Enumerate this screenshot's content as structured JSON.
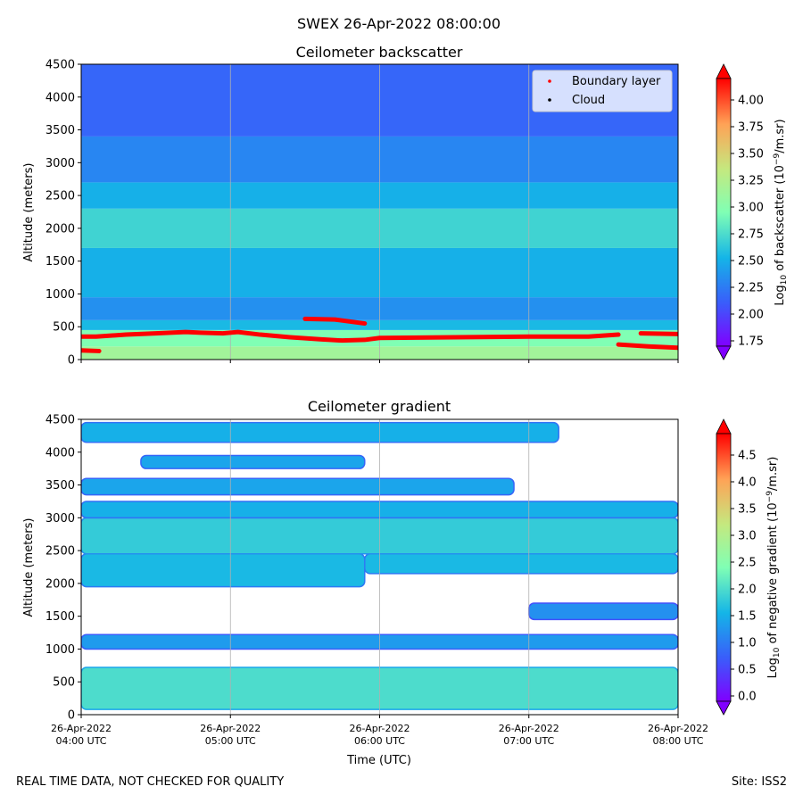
{
  "figure_title": "SWEX 26-Apr-2022 08:00:00",
  "footer_left": "REAL TIME DATA, NOT CHECKED FOR QUALITY",
  "footer_right": "Site: ISS2",
  "chart_data": [
    {
      "type": "heatmap",
      "title": "Ceilometer backscatter",
      "ylabel": "Altitude (meters)",
      "xlabel": "",
      "xlim": [
        0,
        4
      ],
      "ylim": [
        0,
        4500
      ],
      "yticks": [
        "0",
        "500",
        "1000",
        "1500",
        "2000",
        "2500",
        "3000",
        "3500",
        "4000",
        "4500"
      ],
      "grid": "vertical",
      "colorbar": {
        "label": "Log10 of backscatter (10^-9/m.sr)",
        "ticks": [
          "1.75",
          "2.00",
          "2.25",
          "2.50",
          "2.75",
          "3.00",
          "3.25",
          "3.50",
          "3.75",
          "4.00"
        ],
        "range": [
          1.7,
          4.2
        ],
        "colormap": "rainbow"
      },
      "legend": {
        "position": "top-right",
        "entries": [
          {
            "label": "Boundary layer",
            "color": "#ff0000"
          },
          {
            "label": "Cloud",
            "color": "#000000"
          }
        ]
      },
      "field_layers": [
        {
          "alt_min": 0,
          "alt_max": 200,
          "value": 3.15
        },
        {
          "alt_min": 200,
          "alt_max": 450,
          "value": 2.95
        },
        {
          "alt_min": 450,
          "alt_max": 600,
          "value": 2.55
        },
        {
          "alt_min": 600,
          "alt_max": 950,
          "value": 2.35
        },
        {
          "alt_min": 950,
          "alt_max": 1700,
          "value": 2.5
        },
        {
          "alt_min": 1700,
          "alt_max": 2300,
          "value": 2.7
        },
        {
          "alt_min": 2300,
          "alt_max": 2700,
          "value": 2.5
        },
        {
          "alt_min": 2700,
          "alt_max": 3400,
          "value": 2.3
        },
        {
          "alt_min": 3400,
          "alt_max": 4500,
          "value": 2.15
        }
      ],
      "series": [
        {
          "name": "Boundary layer",
          "color": "#ff0000",
          "segments": [
            {
              "x": [
                0.0,
                0.12
              ],
              "y": [
                140,
                130
              ]
            },
            {
              "x": [
                0.0,
                0.1,
                0.3,
                0.5,
                0.7,
                0.8,
                0.95,
                1.05,
                1.2,
                1.4,
                1.6,
                1.75,
                1.9,
                2.0,
                2.5,
                3.0,
                3.4,
                3.6
              ],
              "y": [
                350,
                350,
                380,
                400,
                420,
                410,
                400,
                420,
                380,
                340,
                310,
                290,
                300,
                330,
                340,
                350,
                350,
                380
              ]
            },
            {
              "x": [
                1.5,
                1.7,
                1.9
              ],
              "y": [
                620,
                610,
                550
              ]
            },
            {
              "x": [
                3.6,
                3.8,
                4.0
              ],
              "y": [
                230,
                200,
                180
              ]
            },
            {
              "x": [
                3.75,
                4.0
              ],
              "y": [
                400,
                390
              ]
            }
          ]
        },
        {
          "name": "Cloud",
          "color": "#000000",
          "segments": []
        }
      ]
    },
    {
      "type": "heatmap",
      "title": "Ceilometer gradient",
      "ylabel": "Altitude (meters)",
      "xlabel": "Time (UTC)",
      "xlim": [
        0,
        4
      ],
      "ylim": [
        0,
        4500
      ],
      "xticks": [
        "26-Apr-2022\n04:00 UTC",
        "26-Apr-2022\n05:00 UTC",
        "26-Apr-2022\n06:00 UTC",
        "26-Apr-2022\n07:00 UTC",
        "26-Apr-2022\n08:00 UTC"
      ],
      "yticks": [
        "0",
        "500",
        "1000",
        "1500",
        "2000",
        "2500",
        "3000",
        "3500",
        "4000",
        "4500"
      ],
      "grid": "vertical",
      "colorbar": {
        "label": "Log10 of negative gradient (10^-9/m.sr)",
        "ticks": [
          "0.0",
          "0.5",
          "1.0",
          "1.5",
          "2.0",
          "2.5",
          "3.0",
          "3.5",
          "4.0",
          "4.5"
        ],
        "range": [
          -0.1,
          4.9
        ],
        "colormap": "rainbow"
      },
      "bands": [
        {
          "x_min": 0.0,
          "x_max": 4.0,
          "alt_min": 80,
          "alt_max": 720,
          "value": 2.0
        },
        {
          "x_min": 0.0,
          "x_max": 4.0,
          "alt_min": 1000,
          "alt_max": 1220,
          "value": 1.3
        },
        {
          "x_min": 3.0,
          "x_max": 4.0,
          "alt_min": 1450,
          "alt_max": 1700,
          "value": 1.2
        },
        {
          "x_min": 0.0,
          "x_max": 1.9,
          "alt_min": 1950,
          "alt_max": 2450,
          "value": 1.6
        },
        {
          "x_min": 1.9,
          "x_max": 4.0,
          "alt_min": 2150,
          "alt_max": 2450,
          "value": 1.6
        },
        {
          "x_min": 0.0,
          "x_max": 4.0,
          "alt_min": 2450,
          "alt_max": 3000,
          "value": 1.8
        },
        {
          "x_min": 0.0,
          "x_max": 4.0,
          "alt_min": 3000,
          "alt_max": 3250,
          "value": 1.5
        },
        {
          "x_min": 0.0,
          "x_max": 2.9,
          "alt_min": 3350,
          "alt_max": 3600,
          "value": 1.4
        },
        {
          "x_min": 0.4,
          "x_max": 1.9,
          "alt_min": 3750,
          "alt_max": 3950,
          "value": 1.4
        },
        {
          "x_min": 0.0,
          "x_max": 3.2,
          "alt_min": 4150,
          "alt_max": 4450,
          "value": 1.5
        }
      ]
    }
  ]
}
